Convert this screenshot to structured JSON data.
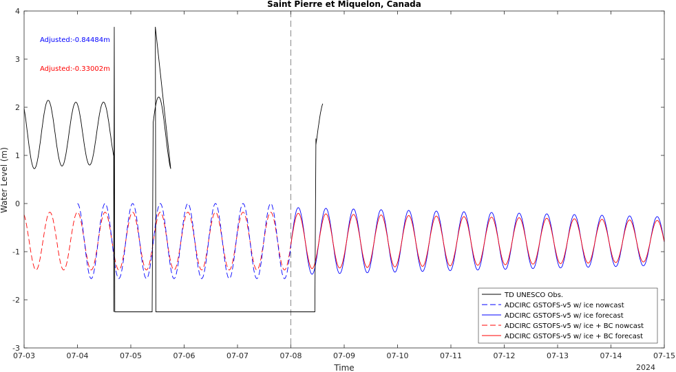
{
  "chart_data": {
    "type": "line",
    "title": "Saint Pierre et Miquelon, Canada",
    "xlabel": "Time",
    "ylabel": "Water Level (m)",
    "year_label": "2024",
    "xlim": [
      "07-03",
      "07-15"
    ],
    "ylim": [
      -3,
      4
    ],
    "x_ticks": [
      "07-03",
      "07-04",
      "07-05",
      "07-06",
      "07-07",
      "07-08",
      "07-09",
      "07-10",
      "07-11",
      "07-12",
      "07-13",
      "07-14",
      "07-15"
    ],
    "y_ticks": [
      "-3",
      "-2",
      "-1",
      "0",
      "1",
      "2",
      "3",
      "4"
    ],
    "forecast_start": "07-08",
    "annotations": [
      {
        "text": "Adjusted:-0.84484m",
        "color": "#0000ff"
      },
      {
        "text": "Adjusted:-0.33002m",
        "color": "#ff0000"
      }
    ],
    "legend_position": "bottom-right",
    "series": [
      {
        "name": "TD UNESCO Obs.",
        "color": "#000000",
        "style": "solid",
        "x_range": [
          "07-03",
          "07-08 14:00"
        ],
        "approx_range": [
          -2.25,
          3.67
        ]
      },
      {
        "name": "ADCIRC GSTOFS-v5 w/ ice nowcast",
        "color": "#0000ff",
        "style": "dashed",
        "x_range": [
          "07-04",
          "07-08"
        ],
        "approx_range": [
          -1.6,
          0.05
        ]
      },
      {
        "name": "ADCIRC GSTOFS-v5 w/ ice forecast",
        "color": "#0000ff",
        "style": "solid",
        "x_range": [
          "07-08",
          "07-15"
        ],
        "approx_range": [
          -1.5,
          -0.08
        ]
      },
      {
        "name": "ADCIRC GSTOFS-v5 w/ ice + BC nowcast",
        "color": "#ff0000",
        "style": "dashed",
        "x_range": [
          "07-03",
          "07-08"
        ],
        "approx_range": [
          -1.5,
          -0.18
        ]
      },
      {
        "name": "ADCIRC GSTOFS-v5 w/ ice + BC forecast",
        "color": "#ff0000",
        "style": "solid",
        "x_range": [
          "07-08",
          "07-15"
        ],
        "approx_range": [
          -1.4,
          -0.3
        ]
      }
    ]
  }
}
